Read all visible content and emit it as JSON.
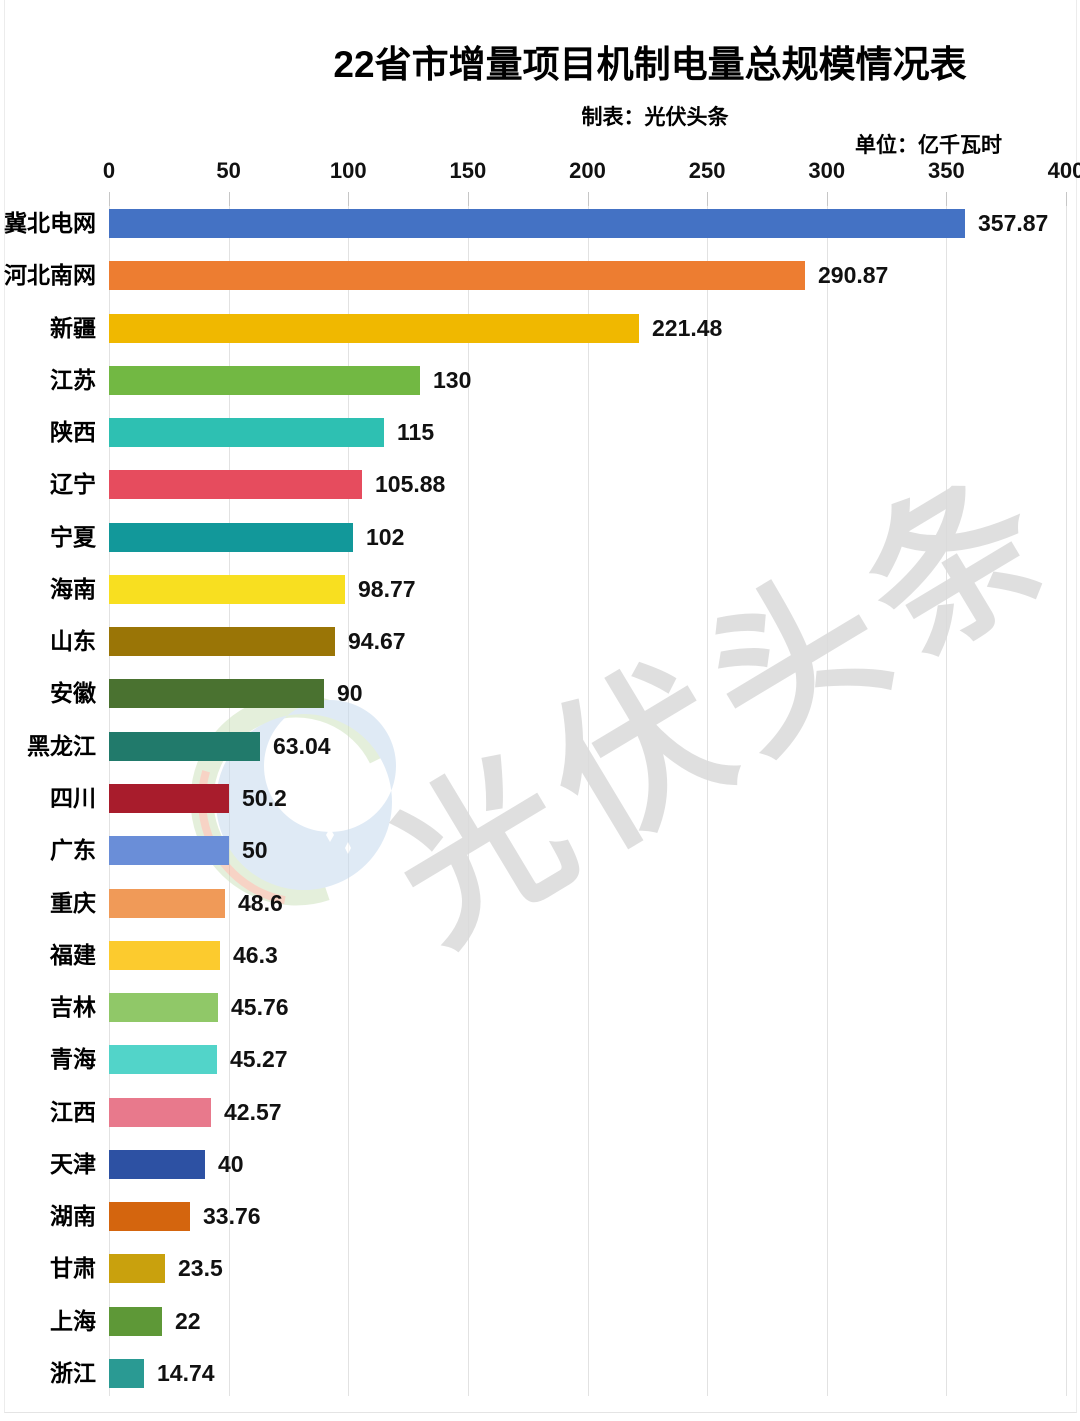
{
  "header": {
    "title": "22省市增量项目机制电量总规模情况表",
    "subtitle": "制表：光伏头条",
    "unit_label": "单位：亿千瓦时"
  },
  "watermark": {
    "text": "光伏头条",
    "logo_name": "pv-headlines-logo",
    "text_color": "#dadada"
  },
  "chart_data": {
    "type": "bar",
    "orientation": "horizontal",
    "title": "22省市增量项目机制电量总规模情况表",
    "subtitle": "制表：光伏头条",
    "unit": "亿千瓦时",
    "grid": true,
    "axis": {
      "min": 0,
      "max": 400,
      "tick_interval": 50,
      "ticks": [
        0,
        50,
        100,
        150,
        200,
        250,
        300,
        350,
        400
      ]
    },
    "categories": [
      "冀北电网",
      "河北南网",
      "新疆",
      "江苏",
      "陕西",
      "辽宁",
      "宁夏",
      "海南",
      "山东",
      "安徽",
      "黑龙江",
      "四川",
      "广东",
      "重庆",
      "福建",
      "吉林",
      "青海",
      "江西",
      "天津",
      "湖南",
      "甘肃",
      "上海",
      "浙江"
    ],
    "values": [
      357.87,
      290.87,
      221.48,
      130,
      115,
      105.88,
      102,
      98.77,
      94.67,
      90,
      63.04,
      50.2,
      50,
      48.6,
      46.3,
      45.76,
      45.27,
      42.57,
      40,
      33.76,
      23.5,
      22,
      14.74
    ],
    "value_labels": [
      "357.87",
      "290.87",
      "221.48",
      "130",
      "115",
      "105.88",
      "102",
      "98.77",
      "94.67",
      "90",
      "63.04",
      "50.2",
      "50",
      "48.6",
      "46.3",
      "45.76",
      "45.27",
      "42.57",
      "40",
      "33.76",
      "23.5",
      "22",
      "14.74"
    ],
    "bar_colors": [
      "#4472C4",
      "#ED7D31",
      "#F0B800",
      "#72B843",
      "#2EC0B2",
      "#E64C5E",
      "#12989A",
      "#F8DF20",
      "#9A7506",
      "#4A7230",
      "#217A6B",
      "#A81C2C",
      "#6A8ED8",
      "#F09A58",
      "#FCCB2E",
      "#90C868",
      "#52D4C9",
      "#E8798C",
      "#2D51A3",
      "#D4650E",
      "#C9A10D",
      "#5E9837",
      "#2A9A93"
    ]
  }
}
